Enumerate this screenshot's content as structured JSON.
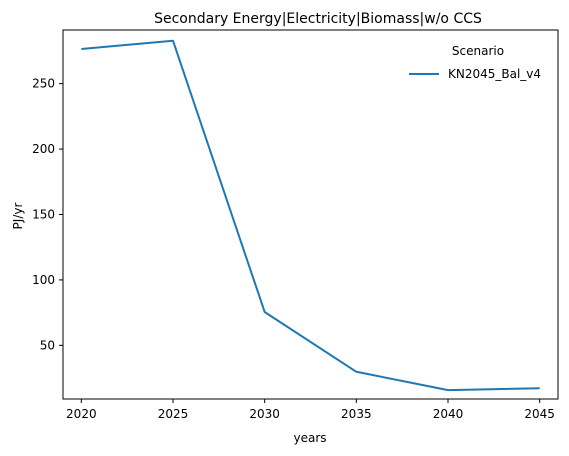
{
  "chart_data": {
    "type": "line",
    "title": "Secondary Energy|Electricity|Biomass|w/o CCS",
    "xlabel": "years",
    "ylabel": "PJ/yr",
    "x": [
      2020,
      2025,
      2030,
      2035,
      2040,
      2045
    ],
    "x_ticks": [
      "2020",
      "2025",
      "2030",
      "2035",
      "2040",
      "2045"
    ],
    "y_ticks": [
      "50",
      "100",
      "150",
      "200",
      "250"
    ],
    "xlim": [
      2019,
      2046
    ],
    "ylim": [
      9,
      291
    ],
    "grid": false,
    "legend": {
      "title": "Scenario",
      "position": "top-right"
    },
    "series": [
      {
        "name": "KN2045_Bal_v4",
        "color": "#1f77b4",
        "values": [
          276.5,
          282.8,
          75.5,
          29.8,
          15.8,
          17.2
        ]
      }
    ]
  }
}
